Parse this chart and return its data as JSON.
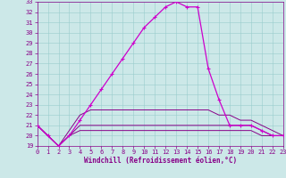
{
  "hours": [
    0,
    1,
    2,
    3,
    4,
    5,
    6,
    7,
    8,
    9,
    10,
    11,
    12,
    13,
    14,
    15,
    16,
    17,
    18,
    19,
    20,
    21,
    22,
    23
  ],
  "temp": [
    21.0,
    20.0,
    19.0,
    20.0,
    21.5,
    23.0,
    24.5,
    26.0,
    27.5,
    29.0,
    30.5,
    31.5,
    32.5,
    33.0,
    32.5,
    32.5,
    26.5,
    23.5,
    21.0,
    21.0,
    21.0,
    20.5,
    20.0,
    20.0
  ],
  "windchill1": [
    21.0,
    20.0,
    19.0,
    20.5,
    22.0,
    22.5,
    22.5,
    22.5,
    22.5,
    22.5,
    22.5,
    22.5,
    22.5,
    22.5,
    22.5,
    22.5,
    22.5,
    22.0,
    22.0,
    21.5,
    21.5,
    21.0,
    20.5,
    20.0
  ],
  "windchill2": [
    21.0,
    20.0,
    19.0,
    20.0,
    21.0,
    21.0,
    21.0,
    21.0,
    21.0,
    21.0,
    21.0,
    21.0,
    21.0,
    21.0,
    21.0,
    21.0,
    21.0,
    21.0,
    21.0,
    21.0,
    21.0,
    20.5,
    20.0,
    20.0
  ],
  "windchill3": [
    21.0,
    20.0,
    19.0,
    20.0,
    20.5,
    20.5,
    20.5,
    20.5,
    20.5,
    20.5,
    20.5,
    20.5,
    20.5,
    20.5,
    20.5,
    20.5,
    20.5,
    20.5,
    20.5,
    20.5,
    20.5,
    20.0,
    20.0,
    20.0
  ],
  "bg_color": "#cce8e8",
  "grid_color": "#99cccc",
  "line_color": "#cc00cc",
  "line_color2": "#880088",
  "xlabel": "Windchill (Refroidissement éolien,°C)",
  "ylim": [
    19,
    33
  ],
  "xlim": [
    0,
    23
  ],
  "yticks": [
    19,
    20,
    21,
    22,
    23,
    24,
    25,
    26,
    27,
    28,
    29,
    30,
    31,
    32,
    33
  ],
  "xticks": [
    0,
    1,
    2,
    3,
    4,
    5,
    6,
    7,
    8,
    9,
    10,
    11,
    12,
    13,
    14,
    15,
    16,
    17,
    18,
    19,
    20,
    21,
    22,
    23
  ],
  "tick_fontsize": 5,
  "xlabel_fontsize": 5.5
}
